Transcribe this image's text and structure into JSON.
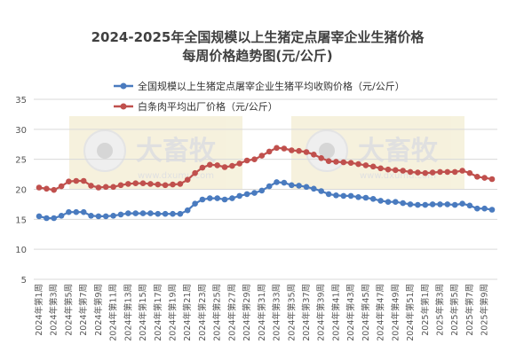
{
  "chart_data": {
    "type": "line",
    "title": "2024-2025年全国规模以上生猪定点屠宰企业生猪价格",
    "subtitle": "每周价格趋势图(元/公斤)",
    "watermark": "大畜牧",
    "watermark_url": "www.dxumu.com",
    "ylim": [
      5,
      35
    ],
    "yticks": [
      5,
      10,
      15,
      20,
      25,
      30,
      35
    ],
    "grid": true,
    "legend_position": "top",
    "x_labels_shown": [
      "2024年第1周",
      "2024年第3周",
      "2024年第5周",
      "2024年第7周",
      "2024年第9周",
      "2024年第11周",
      "2024年第13周",
      "2024年第15周",
      "2024年第17周",
      "2024年第19周",
      "2024年第21周",
      "2024年第23周",
      "2024年第25周",
      "2024年第27周",
      "2024年第29周",
      "2024年第31周",
      "2024年第33周",
      "2024年第35周",
      "2024年第37周",
      "2024年第39周",
      "2024年第41周",
      "2024年第43周",
      "2024年第45周",
      "2024年第47周",
      "2024年第49周",
      "2024年第51周",
      "2025年第1周",
      "2025年第3周",
      "2025年第5周",
      "2025年第7周",
      "2025年第9周"
    ],
    "series": [
      {
        "name": "全国规模以上生猪定点屠宰企业生猪平均收购价格（元/公斤）",
        "color": "#4a7bbf",
        "values": [
          15.5,
          15.2,
          15.2,
          15.6,
          16.2,
          16.2,
          16.2,
          15.6,
          15.5,
          15.5,
          15.6,
          15.8,
          16.0,
          16.0,
          16.0,
          16.0,
          15.9,
          15.9,
          15.9,
          15.9,
          16.5,
          17.6,
          18.3,
          18.5,
          18.5,
          18.3,
          18.5,
          18.9,
          19.2,
          19.4,
          19.8,
          20.5,
          21.2,
          21.1,
          20.7,
          20.6,
          20.4,
          20.1,
          19.7,
          19.2,
          19.0,
          18.9,
          18.9,
          18.7,
          18.6,
          18.4,
          18.1,
          17.9,
          17.9,
          17.7,
          17.5,
          17.4,
          17.4,
          17.5,
          17.5,
          17.5,
          17.4,
          17.6,
          17.3,
          16.8,
          16.8,
          16.6
        ]
      },
      {
        "name": "白条肉平均出厂价格（元/公斤）",
        "color": "#c0504d",
        "values": [
          20.3,
          20.1,
          19.9,
          20.5,
          21.3,
          21.4,
          21.4,
          20.6,
          20.3,
          20.4,
          20.4,
          20.7,
          20.9,
          21.0,
          21.0,
          20.9,
          20.8,
          20.7,
          20.8,
          20.9,
          21.6,
          22.7,
          23.6,
          24.1,
          24.0,
          23.7,
          23.9,
          24.3,
          24.8,
          25.0,
          25.6,
          26.3,
          26.9,
          26.8,
          26.5,
          26.4,
          26.2,
          25.8,
          25.2,
          24.7,
          24.6,
          24.5,
          24.4,
          24.2,
          24.0,
          23.8,
          23.5,
          23.3,
          23.2,
          23.1,
          22.9,
          22.8,
          22.7,
          22.8,
          22.9,
          22.9,
          22.9,
          23.1,
          22.7,
          22.1,
          21.9,
          21.7
        ]
      }
    ]
  }
}
